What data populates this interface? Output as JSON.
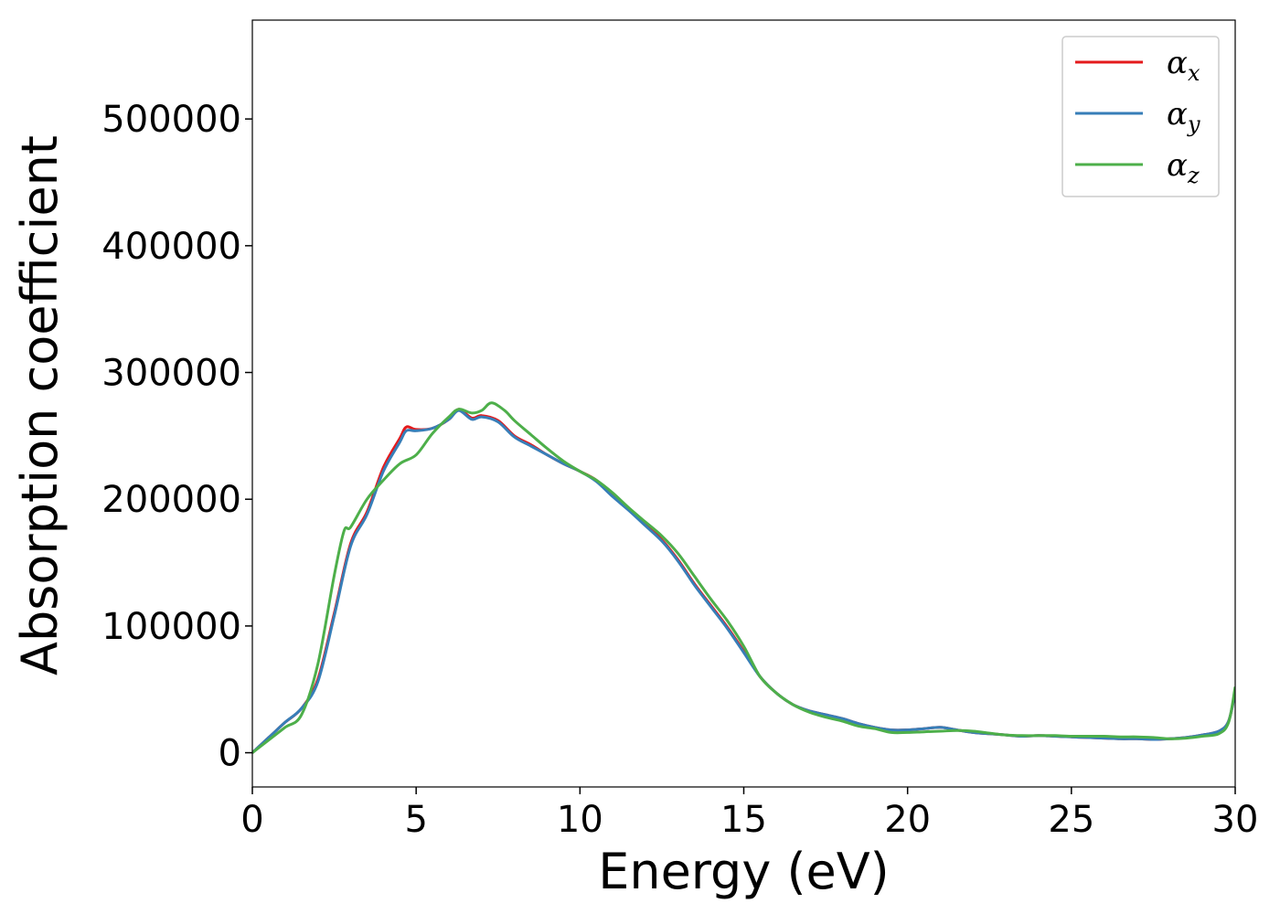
{
  "chart_data": {
    "type": "line",
    "title": "",
    "xlabel": "Energy (eV)",
    "ylabel": "Absorption coefficient",
    "xlim": [
      0,
      30
    ],
    "ylim": [
      -27000,
      578000
    ],
    "xticks": [
      0,
      5,
      10,
      15,
      20,
      25,
      30
    ],
    "yticks": [
      0,
      100000,
      200000,
      300000,
      400000,
      500000
    ],
    "grid": false,
    "legend_position": "top-right",
    "series": [
      {
        "name": "αx",
        "symbol": "α",
        "subscript": "x",
        "color": "#e41a1c",
        "x": [
          0,
          0.5,
          1,
          1.5,
          2,
          2.5,
          3,
          3.5,
          4,
          4.5,
          4.7,
          5,
          5.5,
          6,
          6.3,
          6.7,
          7,
          7.5,
          8,
          8.5,
          9,
          9.5,
          10,
          10.5,
          11,
          11.5,
          12,
          12.5,
          13,
          13.5,
          14,
          14.5,
          15,
          15.5,
          16,
          16.5,
          17,
          17.5,
          18,
          18.5,
          19,
          19.5,
          20,
          20.5,
          21,
          21.5,
          22,
          22.5,
          23,
          23.5,
          24,
          24.5,
          25,
          25.5,
          26,
          26.5,
          27,
          27.5,
          28,
          28.5,
          29,
          29.5,
          29.8,
          30
        ],
        "values": [
          0,
          12000,
          24000,
          35000,
          58000,
          110000,
          165000,
          190000,
          225000,
          248000,
          257000,
          255000,
          256000,
          263000,
          271000,
          264000,
          266000,
          262000,
          250000,
          243000,
          235000,
          228000,
          222000,
          215000,
          203000,
          192000,
          180000,
          168000,
          152000,
          133000,
          116000,
          99000,
          80000,
          60000,
          47000,
          38000,
          33000,
          30000,
          27000,
          23000,
          20000,
          18000,
          18000,
          19000,
          20000,
          18000,
          16000,
          15000,
          14000,
          13000,
          13500,
          13000,
          12500,
          12000,
          11500,
          11000,
          11000,
          10500,
          11000,
          12000,
          14000,
          17000,
          25000,
          48000
        ]
      },
      {
        "name": "αy",
        "symbol": "α",
        "subscript": "y",
        "color": "#377eb8",
        "x": [
          0,
          0.5,
          1,
          1.5,
          2,
          2.5,
          3,
          3.5,
          4,
          4.5,
          4.7,
          5,
          5.5,
          6,
          6.3,
          6.7,
          7,
          7.5,
          8,
          8.5,
          9,
          9.5,
          10,
          10.5,
          11,
          11.5,
          12,
          12.5,
          13,
          13.5,
          14,
          14.5,
          15,
          15.5,
          16,
          16.5,
          17,
          17.5,
          18,
          18.5,
          19,
          19.5,
          20,
          20.5,
          21,
          21.5,
          22,
          22.5,
          23,
          23.5,
          24,
          24.5,
          25,
          25.5,
          26,
          26.5,
          27,
          27.5,
          28,
          28.5,
          29,
          29.5,
          29.8,
          30
        ],
        "values": [
          0,
          12000,
          24000,
          35000,
          56000,
          108000,
          163000,
          188000,
          222000,
          245000,
          254000,
          254000,
          256000,
          263000,
          270000,
          263000,
          265000,
          261000,
          249000,
          242000,
          235000,
          228000,
          222000,
          214000,
          202000,
          191000,
          179000,
          167000,
          151000,
          132000,
          115000,
          98000,
          79000,
          60000,
          47000,
          38000,
          33000,
          30000,
          27000,
          23000,
          20000,
          18000,
          18000,
          19000,
          20000,
          18000,
          16000,
          15000,
          14000,
          13000,
          13500,
          13000,
          12500,
          12000,
          11500,
          11000,
          11000,
          10500,
          11000,
          12000,
          14000,
          17000,
          25000,
          48000
        ]
      },
      {
        "name": "αz",
        "symbol": "α",
        "subscript": "z",
        "color": "#4daf4a",
        "x": [
          0,
          0.5,
          1,
          1.5,
          2,
          2.5,
          2.8,
          3,
          3.5,
          4,
          4.5,
          5,
          5.5,
          6,
          6.3,
          6.7,
          7,
          7.3,
          7.7,
          8,
          8.5,
          9,
          9.5,
          10,
          10.5,
          11,
          11.5,
          12,
          12.5,
          13,
          13.5,
          14,
          14.5,
          15,
          15.5,
          16,
          16.5,
          17,
          17.5,
          18,
          18.5,
          19,
          19.5,
          20,
          20.5,
          21,
          21.5,
          22,
          22.5,
          23,
          23.5,
          24,
          24.5,
          25,
          25.5,
          26,
          26.5,
          27,
          27.5,
          28,
          28.5,
          29,
          29.5,
          29.8,
          30
        ],
        "values": [
          0,
          10000,
          20000,
          30000,
          70000,
          140000,
          175000,
          178000,
          200000,
          215000,
          228000,
          235000,
          252000,
          265000,
          271000,
          268000,
          270000,
          276000,
          270000,
          262000,
          251000,
          240000,
          230000,
          222000,
          215000,
          205000,
          193000,
          182000,
          171000,
          157000,
          139000,
          121000,
          104000,
          84000,
          60000,
          47000,
          38000,
          32000,
          28000,
          25000,
          21000,
          19000,
          16000,
          16000,
          16500,
          17000,
          17500,
          17000,
          15500,
          14000,
          13500,
          13500,
          13500,
          13000,
          13000,
          13000,
          12500,
          12500,
          12000,
          11000,
          11500,
          13000,
          15000,
          24000,
          52000
        ]
      }
    ]
  }
}
